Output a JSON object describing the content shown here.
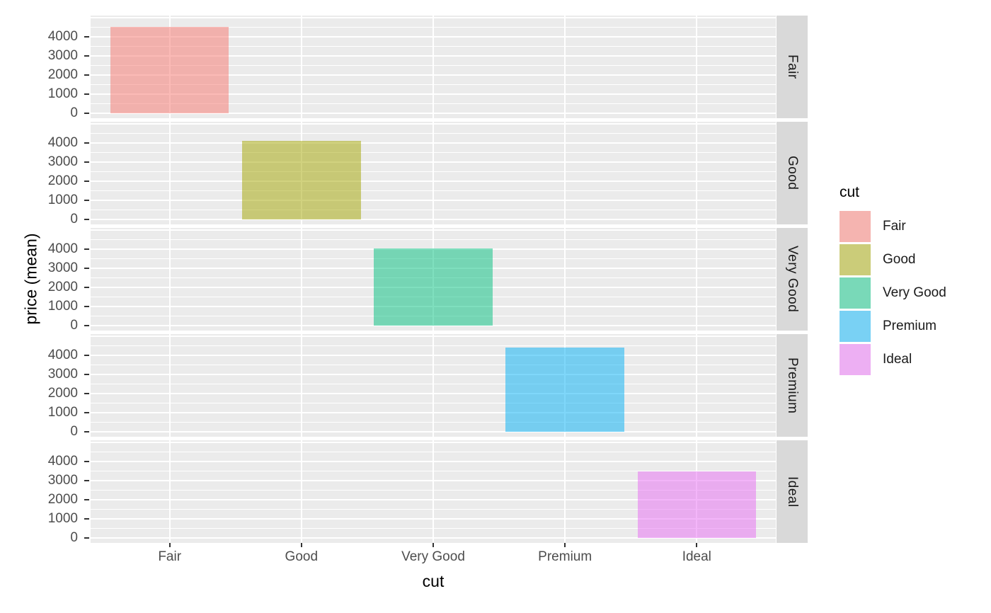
{
  "chart_data": {
    "type": "bar",
    "description": "ggplot2-style bar chart of mean diamond price by cut, faceted by cut in horizontal row panels with right-side strip labels",
    "title": "",
    "xlabel": "cut",
    "ylabel": "price (mean)",
    "categories": [
      "Fair",
      "Good",
      "Very Good",
      "Premium",
      "Ideal"
    ],
    "facets": [
      "Fair",
      "Good",
      "Very Good",
      "Premium",
      "Ideal"
    ],
    "series": [
      {
        "facet": "Fair",
        "category": "Fair",
        "value": 4520
      },
      {
        "facet": "Good",
        "category": "Good",
        "value": 4110
      },
      {
        "facet": "Very Good",
        "category": "Very Good",
        "value": 4040
      },
      {
        "facet": "Premium",
        "category": "Premium",
        "value": 4410
      },
      {
        "facet": "Ideal",
        "category": "Ideal",
        "value": 3490
      }
    ],
    "values": [
      4520,
      4110,
      4040,
      4410,
      3490
    ],
    "y_ticks": [
      "0",
      "1000",
      "2000",
      "3000",
      "4000"
    ],
    "y_tick_values": [
      0,
      1000,
      2000,
      3000,
      4000
    ],
    "y_minor_values": [
      500,
      1500,
      2500,
      3500,
      4500
    ],
    "y_major_extra": [
      5000
    ],
    "ylim": [
      -270,
      5100
    ],
    "grid": "major white on grey panel, minor white thin, vertical major at each category",
    "legend": {
      "position": "right",
      "title": "cut",
      "entries": [
        "Fair",
        "Good",
        "Very Good",
        "Premium",
        "Ideal"
      ]
    },
    "colors": {
      "Fair": "#F8766D",
      "Good": "#A3A500",
      "Very Good": "#00BF7D",
      "Premium": "#00B0F6",
      "Ideal": "#E76BF3"
    },
    "fill_alpha": 0.5,
    "theme": {
      "panel_bg": "#EBEBEB",
      "strip_bg": "#D9D9D9",
      "gridline": "#FFFFFF",
      "axis_text": "#4D4D4D",
      "title_text": "#000000",
      "tick_mark": "#333333"
    }
  }
}
